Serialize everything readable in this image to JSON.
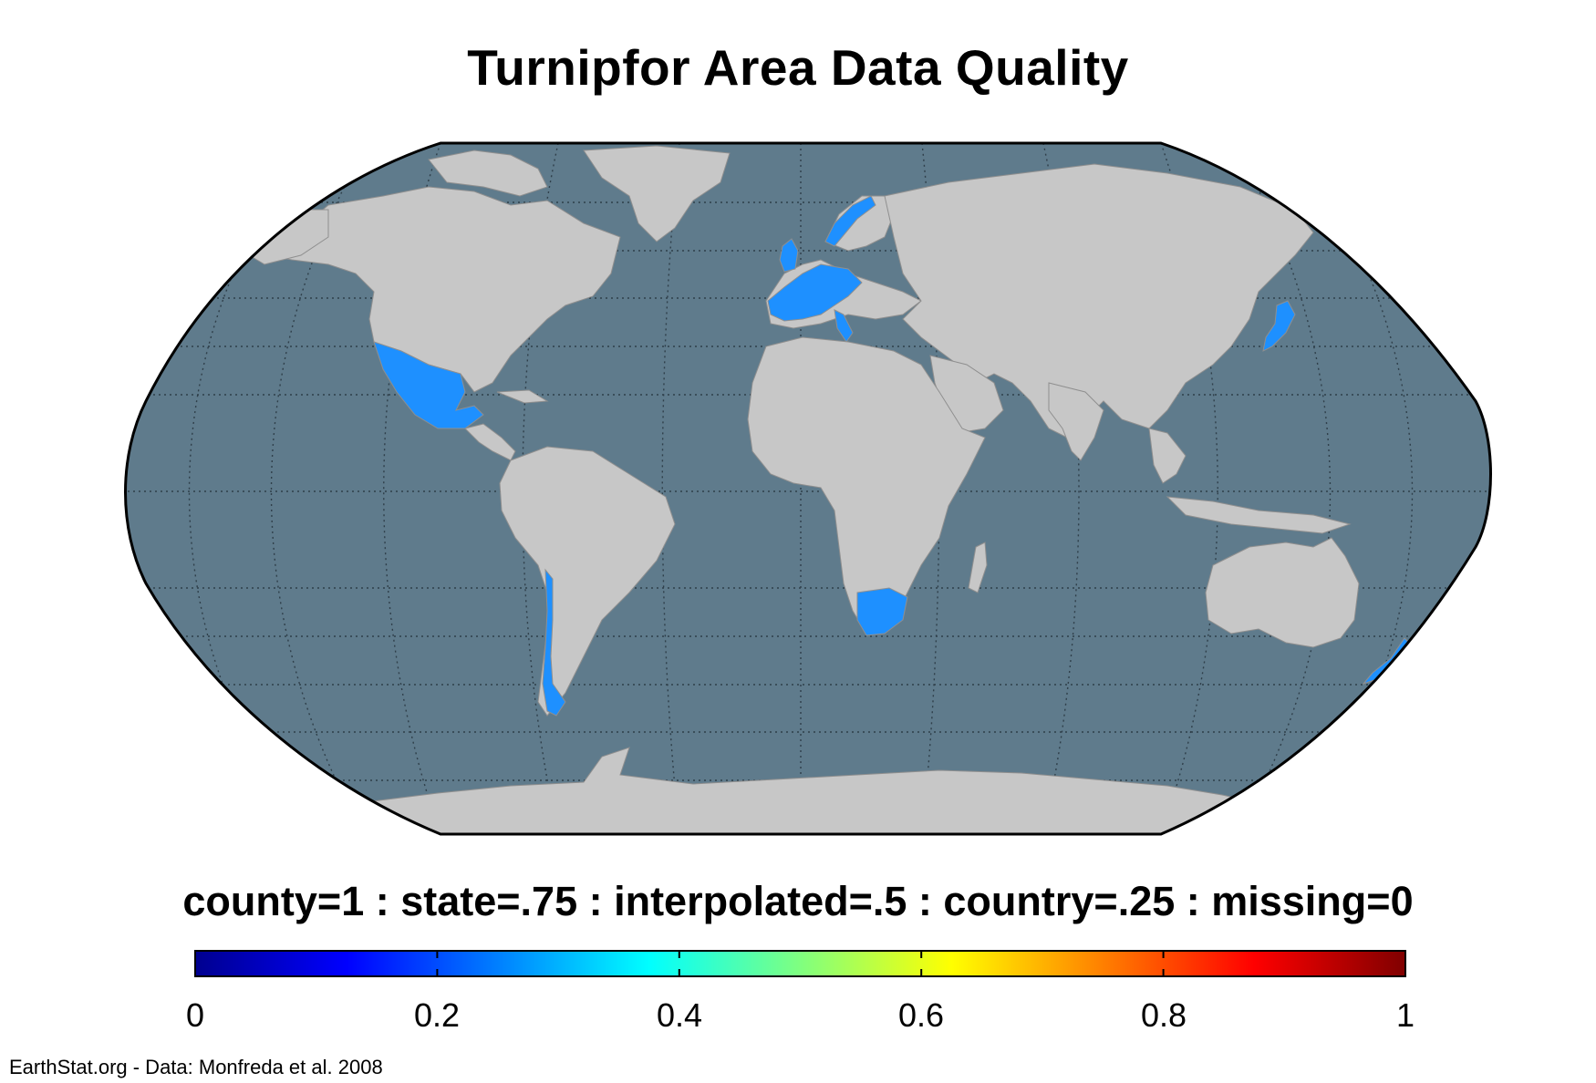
{
  "title": "Turnipfor Area Data Quality",
  "legend": {
    "caption": "county=1 : state=.75 : interpolated=.5 : country=.25 : missing=0",
    "colormap": "jet",
    "range": [
      0,
      1
    ],
    "ticks": [
      "0",
      "0.2",
      "0.4",
      "0.6",
      "0.8",
      "1"
    ]
  },
  "credit": "EarthStat.org - Data: Monfreda et al. 2008",
  "map": {
    "projection": "robinson",
    "colors": {
      "ocean": "#5f7b8c",
      "land": "#c7c7c7",
      "borders": "#8f8f8f",
      "graticule": "#3a4a55",
      "highlight": "#1e90ff",
      "frame": "#000000"
    },
    "highlighted_regions": [
      {
        "name": "Mexico",
        "value": 0.25
      },
      {
        "name": "Chile",
        "value": 0.25
      },
      {
        "name": "South Africa",
        "value": 0.25
      },
      {
        "name": "Western Europe",
        "value": 0.25
      },
      {
        "name": "Norway",
        "value": 0.25
      },
      {
        "name": "Japan",
        "value": 0.25
      },
      {
        "name": "New Zealand",
        "value": 0.25
      }
    ]
  }
}
